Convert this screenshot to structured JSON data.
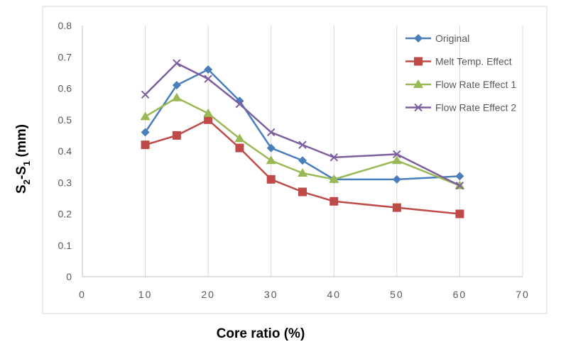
{
  "chart_data": {
    "type": "line",
    "title": "",
    "xlabel": "Core ratio (%)",
    "ylabel": {
      "base": "S",
      "sub1": "2",
      "mid": "-S",
      "sub2": "1",
      "tail": " (mm)"
    },
    "xlim": [
      0,
      70
    ],
    "ylim": [
      0,
      0.8
    ],
    "x_ticks": [
      "0",
      "10",
      "20",
      "30",
      "40",
      "50",
      "60",
      "70"
    ],
    "y_ticks": [
      "0",
      "0.1",
      "0.2",
      "0.3",
      "0.4",
      "0.5",
      "0.6",
      "0.7",
      "0.8"
    ],
    "grid": "vertical",
    "legend_position": "top-right",
    "x": [
      10,
      15,
      20,
      25,
      30,
      35,
      40,
      50,
      60
    ],
    "series": [
      {
        "name": "Original",
        "color": "#4a7ebb",
        "marker": "diamond",
        "values": [
          0.46,
          0.61,
          0.66,
          0.56,
          0.41,
          0.37,
          0.31,
          0.31,
          0.32
        ]
      },
      {
        "name": "Melt Temp. Effect",
        "color": "#be4b48",
        "marker": "square",
        "values": [
          0.42,
          0.45,
          0.5,
          0.41,
          0.31,
          0.27,
          0.24,
          0.22,
          0.2
        ]
      },
      {
        "name": "Flow Rate Effect 1",
        "color": "#98b954",
        "marker": "triangle",
        "values": [
          0.51,
          0.57,
          0.52,
          0.44,
          0.37,
          0.33,
          0.31,
          0.37,
          0.29
        ]
      },
      {
        "name": "Flow Rate Effect 2",
        "color": "#7d5fa0",
        "marker": "x",
        "values": [
          0.58,
          0.68,
          0.63,
          0.55,
          0.46,
          0.42,
          0.38,
          0.39,
          0.29
        ]
      }
    ]
  }
}
